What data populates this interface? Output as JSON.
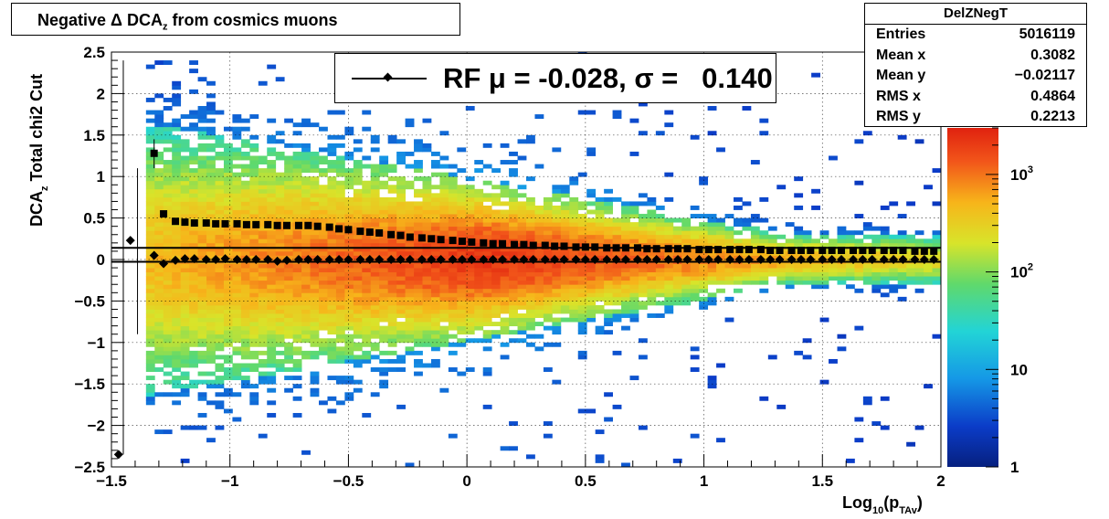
{
  "title": "Negative Δ DCA_z  from cosmics muons",
  "stats": {
    "name": "DelZNegT",
    "rows": [
      {
        "label": "Entries",
        "value": "5016119"
      },
      {
        "label": "Mean x",
        "value": "0.3082"
      },
      {
        "label": "Mean y",
        "value": "−0.02117"
      },
      {
        "label": "RMS x",
        "value": "0.4864"
      },
      {
        "label": "RMS y",
        "value": "0.2213"
      }
    ]
  },
  "legend": {
    "text": "RF μ = -0.028, σ =   0.140"
  },
  "chart_data": {
    "type": "heatmap",
    "title": "Negative Δ DCA_z  from cosmics muons",
    "xlabel": "Log10(pTAv)",
    "ylabel": "DCAz   Total chi2 Cut",
    "xlim": [
      -1.5,
      2
    ],
    "ylim": [
      -2.5,
      2.5
    ],
    "x_ticks": [
      "−1.5",
      "−1",
      "−0.5",
      "0",
      "0.5",
      "1",
      "1.5",
      "2"
    ],
    "y_ticks": [
      "−2.5",
      "−2",
      "−1.5",
      "−1",
      "−0.5",
      "0",
      "0.5",
      "1",
      "1.5",
      "2",
      "2.5"
    ],
    "colorbar": {
      "scale": "log",
      "min": 1,
      "max": 3000,
      "tick_labels": [
        "1",
        "10",
        "10^2",
        "10^3"
      ]
    },
    "grid": true,
    "series": [
      {
        "name": "RF",
        "marker": "diamond",
        "x": [
          -1.47,
          -1.42,
          -1.32,
          -1.28,
          -1.23,
          -1.19,
          -1.15,
          -1.1,
          -1.06,
          -1.02,
          -0.97,
          -0.93,
          -0.89,
          -0.84,
          -0.8,
          -0.76,
          -0.71,
          -0.67,
          -0.63,
          -0.58,
          -0.54,
          -0.5,
          -0.45,
          -0.41,
          -0.37,
          -0.32,
          -0.28,
          -0.24,
          -0.19,
          -0.15,
          -0.11,
          -0.06,
          -0.02,
          0.02,
          0.07,
          0.11,
          0.15,
          0.2,
          0.24,
          0.28,
          0.33,
          0.37,
          0.41,
          0.46,
          0.5,
          0.54,
          0.59,
          0.63,
          0.67,
          0.72,
          0.76,
          0.8,
          0.85,
          0.89,
          0.93,
          0.98,
          1.02,
          1.06,
          1.11,
          1.15,
          1.19,
          1.24,
          1.28,
          1.32,
          1.37,
          1.41,
          1.45,
          1.5,
          1.54,
          1.58,
          1.63,
          1.67,
          1.71,
          1.76,
          1.8,
          1.84,
          1.89,
          1.93,
          1.97
        ],
        "y": [
          -2.35,
          0.23,
          0.05,
          -0.05,
          -0.01,
          0.01,
          0.01,
          0.0,
          0.0,
          0.01,
          0.0,
          0.0,
          0.0,
          0.0,
          -0.02,
          -0.01,
          0.0,
          0.0,
          0.0,
          0.0,
          0.0,
          0.0,
          0.0,
          0.0,
          0.0,
          0.0,
          0.0,
          0.0,
          0.0,
          0.0,
          0.0,
          0.0,
          0.0,
          0.0,
          0.0,
          0.0,
          0.0,
          0.0,
          0.0,
          0.0,
          0.0,
          0.0,
          0.0,
          0.0,
          0.0,
          0.0,
          0.0,
          0.0,
          0.0,
          0.0,
          0.0,
          0.0,
          0.0,
          0.0,
          0.0,
          0.0,
          0.0,
          0.0,
          0.0,
          0.0,
          0.0,
          0.0,
          0.0,
          0.0,
          0.0,
          0.0,
          0.0,
          0.0,
          0.0,
          0.0,
          0.0,
          0.0,
          0.0,
          0.0,
          0.0,
          0.0,
          0.0,
          0.0,
          0.0
        ]
      },
      {
        "name": "",
        "marker": "square",
        "x": [
          -1.32,
          -1.28,
          -1.23,
          -1.19,
          -1.15,
          -1.1,
          -1.06,
          -1.02,
          -0.97,
          -0.93,
          -0.89,
          -0.84,
          -0.8,
          -0.76,
          -0.71,
          -0.67,
          -0.63,
          -0.58,
          -0.54,
          -0.5,
          -0.45,
          -0.41,
          -0.37,
          -0.32,
          -0.28,
          -0.24,
          -0.19,
          -0.15,
          -0.11,
          -0.06,
          -0.02,
          0.02,
          0.07,
          0.11,
          0.15,
          0.2,
          0.24,
          0.28,
          0.33,
          0.37,
          0.41,
          0.46,
          0.5,
          0.54,
          0.59,
          0.63,
          0.67,
          0.72,
          0.76,
          0.8,
          0.85,
          0.89,
          0.93,
          0.98,
          1.02,
          1.06,
          1.11,
          1.15,
          1.19,
          1.24,
          1.28,
          1.32,
          1.37,
          1.41,
          1.45,
          1.5,
          1.54,
          1.58,
          1.63,
          1.67,
          1.71,
          1.76,
          1.8,
          1.84,
          1.89,
          1.93,
          1.97
        ],
        "y": [
          1.28,
          0.55,
          0.46,
          0.45,
          0.44,
          0.44,
          0.43,
          0.43,
          0.43,
          0.42,
          0.42,
          0.42,
          0.41,
          0.41,
          0.41,
          0.41,
          0.4,
          0.39,
          0.37,
          0.36,
          0.34,
          0.33,
          0.32,
          0.3,
          0.29,
          0.27,
          0.26,
          0.25,
          0.24,
          0.23,
          0.22,
          0.21,
          0.2,
          0.19,
          0.19,
          0.18,
          0.18,
          0.17,
          0.17,
          0.16,
          0.16,
          0.15,
          0.15,
          0.15,
          0.14,
          0.14,
          0.14,
          0.14,
          0.13,
          0.13,
          0.13,
          0.13,
          0.13,
          0.12,
          0.12,
          0.12,
          0.12,
          0.12,
          0.12,
          0.12,
          0.11,
          0.11,
          0.11,
          0.11,
          0.11,
          0.11,
          0.11,
          0.11,
          0.11,
          0.11,
          0.11,
          0.11,
          0.11,
          0.11,
          0.1,
          0.1,
          0.1
        ]
      }
    ],
    "fit_lines_y": [
      0.14,
      -0.028
    ]
  }
}
